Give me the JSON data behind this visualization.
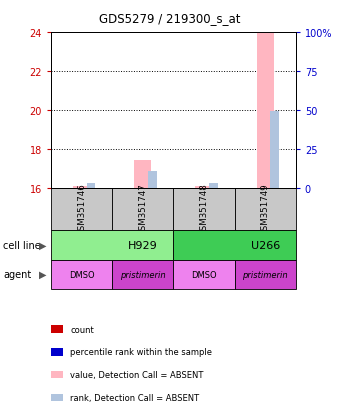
{
  "title": "GDS5279 / 219300_s_at",
  "samples": [
    "GSM351746",
    "GSM351747",
    "GSM351748",
    "GSM351749"
  ],
  "agents": [
    "DMSO",
    "pristimerin",
    "DMSO",
    "pristimerin"
  ],
  "cell_line_groups": [
    {
      "label": "H929",
      "span": [
        0,
        2
      ],
      "color": "#90EE90"
    },
    {
      "label": "U266",
      "span": [
        2,
        4
      ],
      "color": "#3ECC55"
    }
  ],
  "agent_colors": {
    "DMSO": "#EE82EE",
    "pristimerin": "#CC44CC"
  },
  "ylim_left": [
    16,
    24
  ],
  "ylim_right": [
    0,
    100
  ],
  "yticks_left": [
    16,
    18,
    20,
    22,
    24
  ],
  "yticks_right": [
    0,
    25,
    50,
    75,
    100
  ],
  "ytick_labels_right": [
    "0",
    "25",
    "50",
    "75",
    "100%"
  ],
  "bar_data": [
    {
      "x": 0,
      "value": 16.1,
      "rank": 3.0
    },
    {
      "x": 1,
      "value": 17.4,
      "rank": 10.5
    },
    {
      "x": 2,
      "value": 16.1,
      "rank": 3.0
    },
    {
      "x": 3,
      "value": 24.0,
      "rank": 49.0
    }
  ],
  "value_color_absent": "#FFB6C1",
  "rank_color_absent": "#B0C4DE",
  "bar_width": 0.28,
  "rank_bar_width": 0.14,
  "legend_items": [
    {
      "color": "#CC0000",
      "label": "count"
    },
    {
      "color": "#0000CC",
      "label": "percentile rank within the sample"
    },
    {
      "color": "#FFB6C1",
      "label": "value, Detection Call = ABSENT"
    },
    {
      "color": "#B0C4DE",
      "label": "rank, Detection Call = ABSENT"
    }
  ],
  "left_color": "#CC0000",
  "right_color": "#0000CC",
  "background_color": "#FFFFFF",
  "sample_box_color": "#C8C8C8"
}
